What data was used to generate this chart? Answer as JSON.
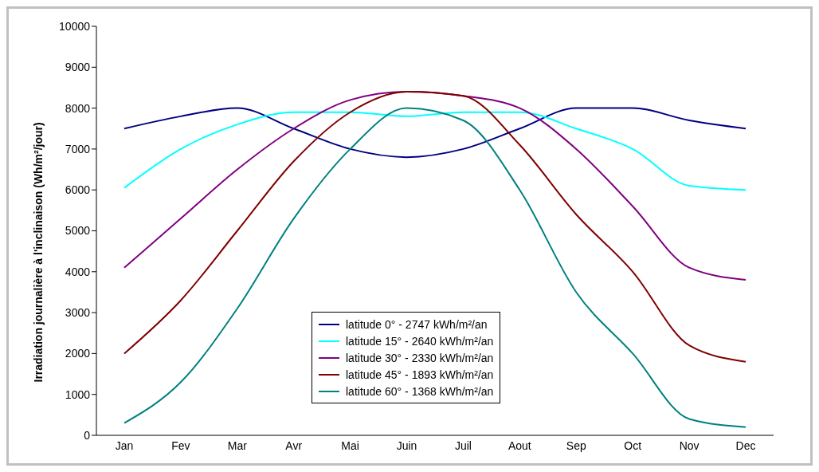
{
  "chart_data": {
    "type": "line",
    "ylabel": "Irradiation journalière à l'inclinaison (Wh/m²/jour)",
    "categories": [
      "Jan",
      "Fev",
      "Mar",
      "Avr",
      "Mai",
      "Juin",
      "Juil",
      "Aout",
      "Sep",
      "Oct",
      "Nov",
      "Dec"
    ],
    "ylim": [
      0,
      10000
    ],
    "yticks": [
      0,
      1000,
      2000,
      3000,
      4000,
      5000,
      6000,
      7000,
      8000,
      9000,
      10000
    ],
    "grid": false,
    "legend": "bottom",
    "marker": "none",
    "line_style": "solid",
    "series": [
      {
        "name": "latitude 0° - 2747 kWh/m²/an",
        "color": "#000080",
        "values": [
          7500,
          7800,
          8000,
          7500,
          7000,
          6800,
          7000,
          7500,
          8000,
          8000,
          7700,
          7500
        ]
      },
      {
        "name": "latitude 15° - 2640 kWh/m²/an",
        "color": "#00ffff",
        "values": [
          6050,
          7000,
          7600,
          7900,
          7900,
          7800,
          7900,
          7900,
          7500,
          7000,
          6100,
          6000
        ]
      },
      {
        "name": "latitude 30° - 2330 kWh/m²/an",
        "color": "#800080",
        "values": [
          4100,
          5300,
          6500,
          7500,
          8200,
          8400,
          8300,
          8000,
          7000,
          5600,
          4100,
          3800
        ]
      },
      {
        "name": "latitude 45° - 1893 kWh/m²/an",
        "color": "#800000",
        "values": [
          2000,
          3300,
          5000,
          6700,
          7900,
          8400,
          8300,
          7100,
          5400,
          4000,
          2200,
          1800
        ]
      },
      {
        "name": "latitude 60° - 1368 kWh/m²/an",
        "color": "#008080",
        "values": [
          300,
          1300,
          3100,
          5300,
          7000,
          8000,
          7700,
          6000,
          3500,
          2000,
          400,
          200
        ]
      }
    ]
  }
}
